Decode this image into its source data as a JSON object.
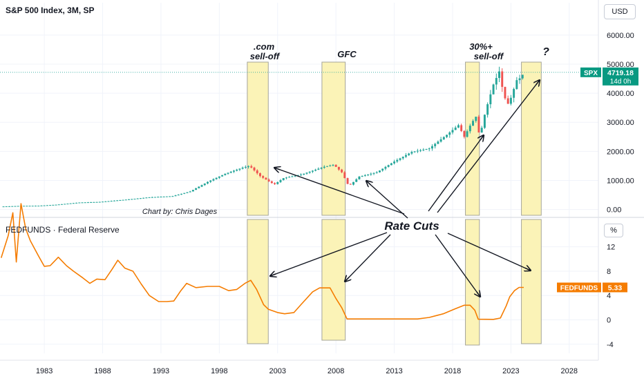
{
  "header": {
    "main_title": "S&P 500 Index, 3M, SP",
    "sub_title": "FEDFUNDS · Federal Reserve",
    "currency": "USD",
    "percent": "%"
  },
  "colors": {
    "up": "#26a69a",
    "down": "#ef5350",
    "fedfunds": "#f57c00",
    "band_fill": "#fbf3b7",
    "band_stroke": "#a4a49a",
    "annotation": "#131722"
  },
  "chart_data": [
    {
      "type": "candlestick",
      "title": "S&P 500 Index, 3M, SP",
      "ylim": [
        -200,
        6400
      ],
      "y_ticks": [
        "6000.00",
        "5000.00",
        "4000.00",
        "3000.00",
        "2000.00",
        "1000.00",
        "0.00"
      ],
      "y_tick_values": [
        6000,
        5000,
        4000,
        3000,
        2000,
        1000,
        0
      ],
      "x_ticks": [
        "1983",
        "1988",
        "1993",
        "1998",
        "2003",
        "2008",
        "2013",
        "2018",
        "2023",
        "2028"
      ],
      "x_tick_values": [
        1983,
        1988,
        1993,
        1998,
        2003,
        2008,
        2013,
        2018,
        2023,
        2028
      ],
      "xlim": [
        1979.2,
        2030.5
      ],
      "last_price_label": "SPX",
      "last_price": "4719.18",
      "countdown": "14d 0h",
      "last_value": 4719.18,
      "price_path": [
        [
          1979.5,
          105
        ],
        [
          1981,
          125
        ],
        [
          1982.5,
          130
        ],
        [
          1984,
          165
        ],
        [
          1986,
          240
        ],
        [
          1987.7,
          260
        ],
        [
          1990,
          340
        ],
        [
          1992,
          420
        ],
        [
          1994,
          460
        ],
        [
          1995.5,
          620
        ],
        [
          1997,
          950
        ],
        [
          1998.5,
          1230
        ],
        [
          2000,
          1440
        ],
        [
          2000.6,
          1500
        ],
        [
          2001.5,
          1150
        ],
        [
          2002.7,
          860
        ],
        [
          2003.5,
          1080
        ],
        [
          2005,
          1200
        ],
        [
          2007,
          1470
        ],
        [
          2007.8,
          1540
        ],
        [
          2008.5,
          1280
        ],
        [
          2009.1,
          800
        ],
        [
          2010,
          1130
        ],
        [
          2011.5,
          1280
        ],
        [
          2013,
          1650
        ],
        [
          2014.5,
          1980
        ],
        [
          2016,
          2100
        ],
        [
          2017.5,
          2570
        ],
        [
          2018.5,
          2900
        ],
        [
          2019,
          2500
        ],
        [
          2019.6,
          2960
        ],
        [
          2020.1,
          3250
        ],
        [
          2020.3,
          2450
        ],
        [
          2020.8,
          3350
        ],
        [
          2021.5,
          4300
        ],
        [
          2022.0,
          4750
        ],
        [
          2022.4,
          3900
        ],
        [
          2022.8,
          3600
        ],
        [
          2023.5,
          4450
        ],
        [
          2023.9,
          4550
        ],
        [
          2024.1,
          4719
        ]
      ],
      "annotations": [
        ".com sell-off",
        "GFC",
        "30%+ sell-off",
        "?",
        "Rate Cuts",
        "Chart by: Chris Dages"
      ]
    },
    {
      "type": "line",
      "title": "FEDFUNDS · Federal Reserve",
      "ylim": [
        -5.5,
        16.5
      ],
      "y_ticks": [
        "12",
        "8",
        "4",
        "0",
        "-4"
      ],
      "y_tick_values": [
        12,
        8,
        4,
        0,
        -4
      ],
      "series": [
        {
          "name": "FEDFUNDS",
          "last_value": "5.33",
          "points": [
            [
              1979.3,
              10.2
            ],
            [
              1979.9,
              13.8
            ],
            [
              1980.3,
              17.6
            ],
            [
              1980.6,
              9.5
            ],
            [
              1981.0,
              19.1
            ],
            [
              1981.4,
              15.0
            ],
            [
              1981.8,
              13.0
            ],
            [
              1982.5,
              10.5
            ],
            [
              1983.0,
              8.8
            ],
            [
              1983.5,
              8.9
            ],
            [
              1984.2,
              10.3
            ],
            [
              1984.9,
              8.9
            ],
            [
              1985.5,
              8.0
            ],
            [
              1986.3,
              6.9
            ],
            [
              1986.9,
              6.0
            ],
            [
              1987.5,
              6.7
            ],
            [
              1988.2,
              6.6
            ],
            [
              1988.8,
              8.3
            ],
            [
              1989.3,
              9.8
            ],
            [
              1989.9,
              8.5
            ],
            [
              1990.6,
              8.0
            ],
            [
              1991.3,
              5.9
            ],
            [
              1992.0,
              4.0
            ],
            [
              1992.8,
              3.0
            ],
            [
              1993.5,
              3.0
            ],
            [
              1994.1,
              3.1
            ],
            [
              1994.7,
              4.8
            ],
            [
              1995.2,
              6.0
            ],
            [
              1996.0,
              5.3
            ],
            [
              1997.0,
              5.5
            ],
            [
              1998.0,
              5.5
            ],
            [
              1998.8,
              4.8
            ],
            [
              1999.5,
              5.0
            ],
            [
              2000.2,
              6.0
            ],
            [
              2000.7,
              6.5
            ],
            [
              2001.2,
              5.0
            ],
            [
              2001.8,
              2.5
            ],
            [
              2002.2,
              1.75
            ],
            [
              2003.0,
              1.2
            ],
            [
              2003.6,
              1.0
            ],
            [
              2004.4,
              1.2
            ],
            [
              2005.0,
              2.5
            ],
            [
              2006.0,
              4.6
            ],
            [
              2006.6,
              5.25
            ],
            [
              2007.5,
              5.25
            ],
            [
              2008.0,
              3.5
            ],
            [
              2008.5,
              2.0
            ],
            [
              2008.95,
              0.15
            ],
            [
              2010,
              0.15
            ],
            [
              2012,
              0.15
            ],
            [
              2015.0,
              0.15
            ],
            [
              2016.0,
              0.4
            ],
            [
              2017.2,
              1.0
            ],
            [
              2018.2,
              1.8
            ],
            [
              2019.0,
              2.4
            ],
            [
              2019.5,
              2.4
            ],
            [
              2019.9,
              1.6
            ],
            [
              2020.2,
              0.1
            ],
            [
              2021.5,
              0.08
            ],
            [
              2022.1,
              0.3
            ],
            [
              2022.6,
              2.3
            ],
            [
              2022.9,
              3.8
            ],
            [
              2023.3,
              4.8
            ],
            [
              2023.7,
              5.33
            ],
            [
              2024.1,
              5.33
            ]
          ]
        }
      ]
    }
  ]
}
